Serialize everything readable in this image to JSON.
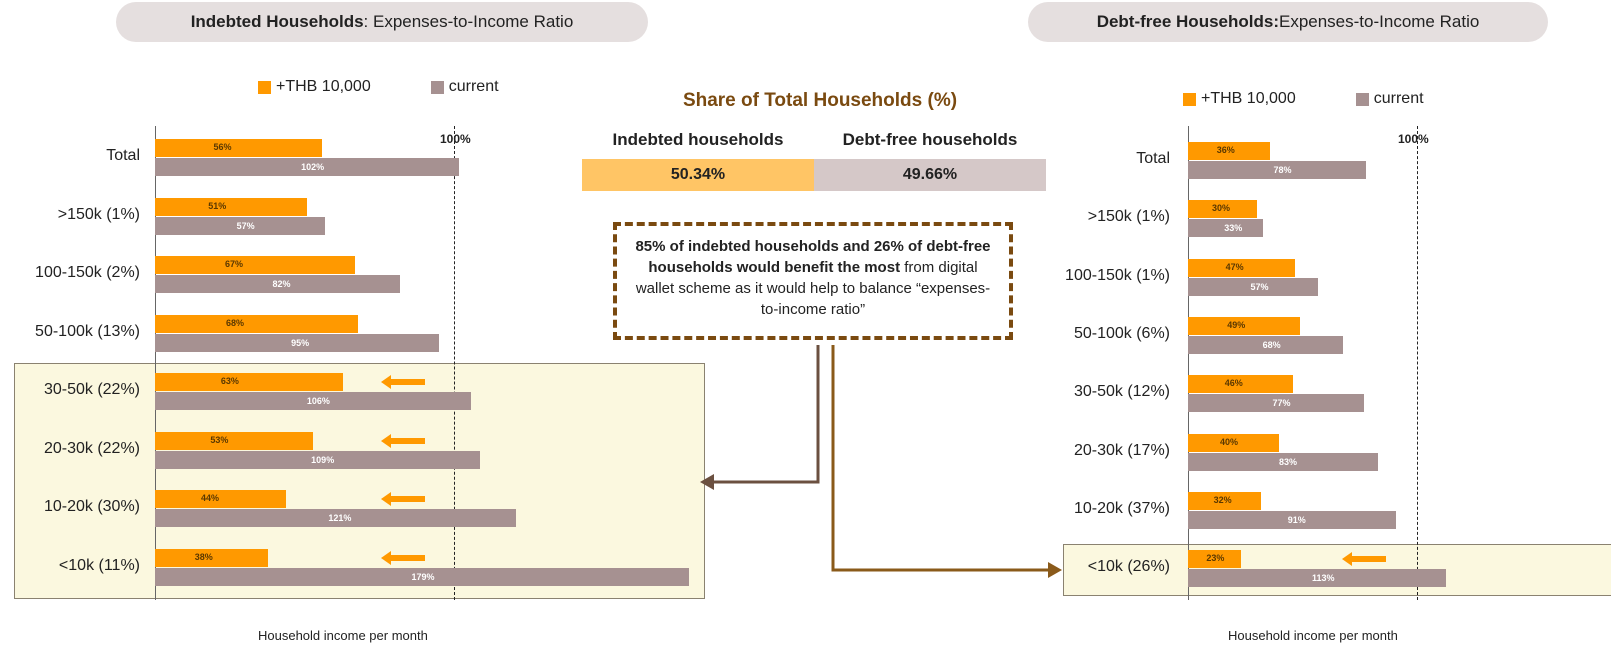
{
  "left_panel": {
    "title_bold": "Indebted Households",
    "title_rest": ": Expenses-to-Income Ratio",
    "legend": [
      {
        "label": "+THB 10,000",
        "color": "#ff9900"
      },
      {
        "label": "current",
        "color": "#a69191"
      }
    ],
    "ref_label": "100%",
    "xlabel": "Household income per month"
  },
  "right_panel": {
    "title_bold": "Debt-free Households:",
    "title_rest": " Expenses-to-Income Ratio",
    "legend": [
      {
        "label": "+THB 10,000",
        "color": "#ff9900"
      },
      {
        "label": "current",
        "color": "#a69191"
      }
    ],
    "ref_label": "100%",
    "xlabel": "Household income per month"
  },
  "share": {
    "title": "Share of Total Households (%)",
    "indebted_label": "Indebted households",
    "debtfree_label": "Debt-free households",
    "indebted_value": "50.34%",
    "debtfree_value": "49.66%",
    "indebted_color": "#ffc565",
    "debtfree_color": "#d5c8c8"
  },
  "note": {
    "bold1": "85% of indebted households and 26% of debt-free households would benefit the most",
    "rest": " from digital wallet scheme as it would help to balance “expenses-to-income ratio”"
  },
  "colors": {
    "plus": "#ff9900",
    "current": "#a69191",
    "arrow": "#ff9900",
    "connector": "#6b5040",
    "connector2": "#8a5a1a"
  },
  "chart_data": [
    {
      "type": "bar",
      "orientation": "horizontal",
      "title": "Indebted Households: Expenses-to-Income Ratio",
      "xlabel": "Household income per month",
      "categories": [
        "Total",
        ">150k (1%)",
        "100-150k (2%)",
        "50-100k (13%)",
        "30-50k (22%)",
        "20-30k (22%)",
        "10-20k (30%)",
        "<10k (11%)"
      ],
      "series": [
        {
          "name": "+THB 10,000",
          "values": [
            56,
            51,
            67,
            68,
            63,
            53,
            44,
            38
          ],
          "labels": [
            "56%",
            "51%",
            "67%",
            "68%",
            "63%",
            "53%",
            "44%",
            "38%"
          ]
        },
        {
          "name": "current",
          "values": [
            102,
            57,
            82,
            95,
            106,
            109,
            121,
            179
          ],
          "labels": [
            "102%",
            "57%",
            "82%",
            "95%",
            "106%",
            "109%",
            "121%",
            "179%"
          ]
        }
      ],
      "highlighted": [
        4,
        5,
        6,
        7
      ],
      "reference_line": 100,
      "xlim": [
        0,
        180
      ]
    },
    {
      "type": "bar",
      "orientation": "horizontal",
      "title": "Debt-free Households: Expenses-to-Income Ratio",
      "xlabel": "Household income per month",
      "categories": [
        "Total",
        ">150k (1%)",
        "100-150k (1%)",
        "50-100k (6%)",
        "30-50k (12%)",
        "20-30k (17%)",
        "10-20k (37%)",
        "<10k (26%)"
      ],
      "series": [
        {
          "name": "+THB 10,000",
          "values": [
            36,
            30,
            47,
            49,
            46,
            40,
            32,
            23
          ],
          "labels": [
            "36%",
            "30%",
            "47%",
            "49%",
            "46%",
            "40%",
            "32%",
            "23%"
          ]
        },
        {
          "name": "current",
          "values": [
            78,
            33,
            57,
            68,
            77,
            83,
            91,
            113
          ],
          "labels": [
            "78%",
            "33%",
            "57%",
            "68%",
            "77%",
            "83%",
            "91%",
            "113%"
          ]
        }
      ],
      "highlighted": [
        7
      ],
      "reference_line": 100,
      "xlim": [
        0,
        115
      ]
    }
  ]
}
